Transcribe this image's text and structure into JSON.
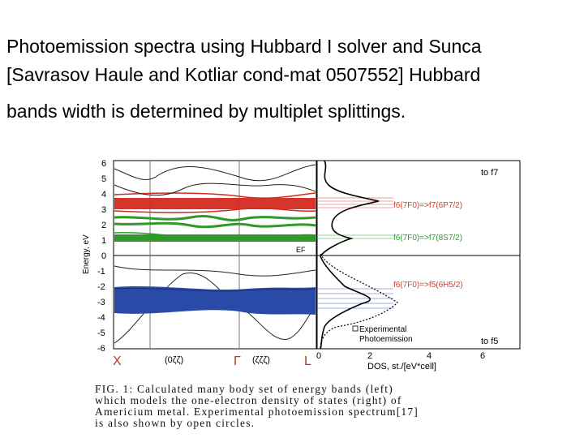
{
  "slide": {
    "line1": "Photoemission spectra using Hubbard I solver  and Sunca",
    "line2": "[Savrasov Haule and Kotliar cond-mat 0507552]  Hubbard",
    "line3": "bands width is determined  by multiplet splittings."
  },
  "figure": {
    "ylabel": "Energy, eV",
    "yticks": [
      "6",
      "5",
      "4",
      "3",
      "2",
      "1",
      "0",
      "-1",
      "-2",
      "-3",
      "-4",
      "-5",
      "-6"
    ],
    "ef_label": "EF",
    "kpoints": [
      "X",
      "(0ζζ)",
      "Γ",
      "(ζζζ)",
      "L"
    ],
    "dos_ticks": [
      "0",
      "2",
      "4",
      "6"
    ],
    "dos_xlabel": "DOS, st./[eV*cell]",
    "annot_top": "to f7",
    "annot_red": "f6(7F0)=>f7(6P7/2)",
    "annot_green": "f6(7F0)=>f7(8S7/2)",
    "annot_blue": "f6(7F0)=>f5(6H5/2)",
    "legend_line1": "Experimental",
    "legend_line2": "Photoemission",
    "annot_bottom": "to f5",
    "colors": {
      "red_band": "#d42a20",
      "green_band": "#2f9a2a",
      "blue_band": "#2a4aa8",
      "annot": "#d04030"
    }
  },
  "caption": {
    "line1": "FIG.  1:  Calculated  many  body  set  of  energy  bands  (left)",
    "line2": "which  models  the  one-electron  density  of  states  (right)  of",
    "line3": "Americium metal.  Experimental photoemission spectrum[17]",
    "line4": "is also shown by open circles."
  }
}
